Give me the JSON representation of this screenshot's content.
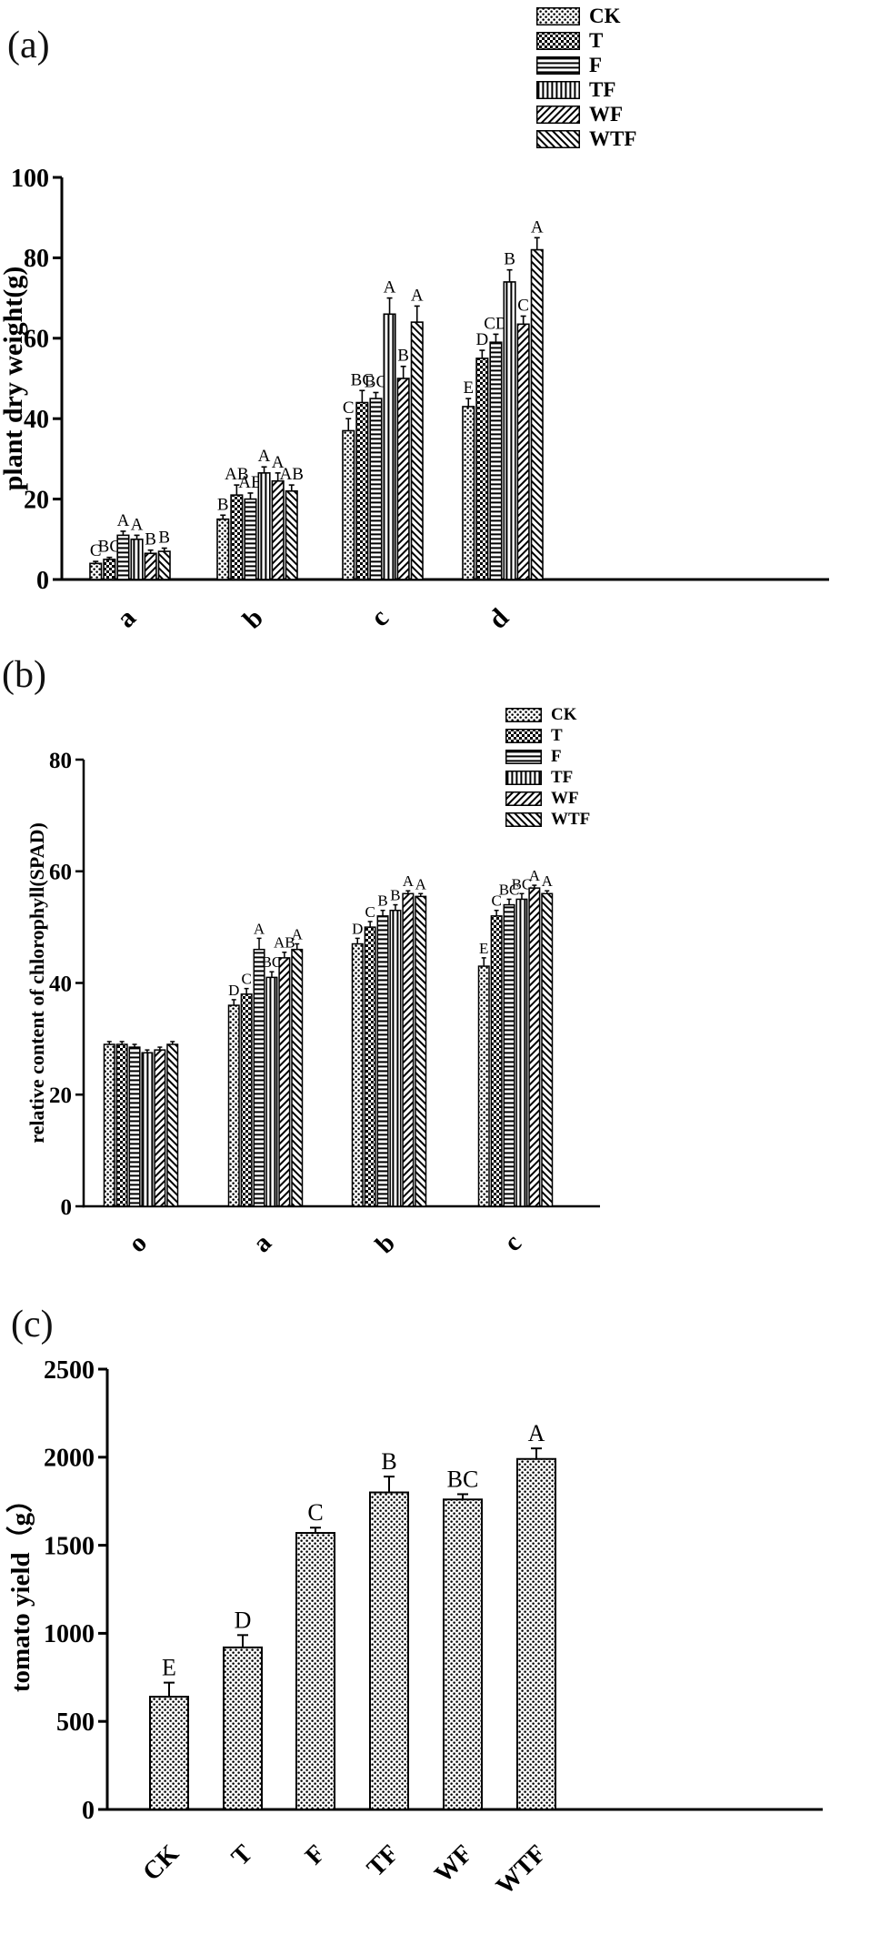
{
  "figure": {
    "panel_labels": [
      "(a)",
      "(b)",
      "(c)"
    ],
    "background_color": "#ffffff",
    "ink_color": "#000000"
  },
  "chart_data": [
    {
      "id": "a",
      "type": "bar",
      "panel": "(a)",
      "title": "",
      "xlabel": "",
      "ylabel": "plant dry weight(g)",
      "ylim": [
        0,
        100
      ],
      "yticks": [
        0,
        20,
        40,
        60,
        80,
        100
      ],
      "grid": false,
      "legend_position": "top-right",
      "categories": [
        "a",
        "b",
        "c",
        "d"
      ],
      "series": [
        {
          "name": "CK",
          "pattern": "dots",
          "values": [
            4,
            15,
            37,
            43
          ],
          "errors": [
            0.5,
            1,
            3,
            2
          ],
          "letters": [
            "C",
            "B",
            "C",
            "E"
          ]
        },
        {
          "name": "T",
          "pattern": "checker",
          "values": [
            5,
            21,
            44,
            55
          ],
          "errors": [
            0.5,
            2.5,
            3,
            2
          ],
          "letters": [
            "BC",
            "AB",
            "BC",
            "D"
          ]
        },
        {
          "name": "F",
          "pattern": "hlines",
          "values": [
            11,
            20,
            45,
            59
          ],
          "errors": [
            1,
            1.5,
            1.5,
            2
          ],
          "letters": [
            "A",
            "AB",
            "BC",
            "CD"
          ]
        },
        {
          "name": "TF",
          "pattern": "vlines",
          "values": [
            10,
            26.5,
            66,
            74
          ],
          "errors": [
            1,
            1.5,
            4,
            3
          ],
          "letters": [
            "A",
            "A",
            "A",
            "B"
          ]
        },
        {
          "name": "WF",
          "pattern": "diag_up",
          "values": [
            6.5,
            24.5,
            50,
            63.5
          ],
          "errors": [
            0.8,
            2,
            3,
            2
          ],
          "letters": [
            "B",
            "A",
            "B",
            "C"
          ]
        },
        {
          "name": "WTF",
          "pattern": "diag_down",
          "values": [
            7,
            22,
            64,
            82
          ],
          "errors": [
            0.8,
            1.5,
            4,
            3
          ],
          "letters": [
            "B",
            "AB",
            "A",
            "A"
          ]
        }
      ]
    },
    {
      "id": "b",
      "type": "bar",
      "panel": "(b)",
      "title": "",
      "xlabel": "",
      "ylabel": "relative content of chlorophyll(SPAD)",
      "ylim": [
        0,
        80
      ],
      "yticks": [
        0,
        20,
        40,
        60,
        80
      ],
      "grid": false,
      "legend_position": "top-right",
      "categories": [
        "o",
        "a",
        "b",
        "c"
      ],
      "series": [
        {
          "name": "CK",
          "pattern": "dots",
          "values": [
            29,
            36,
            47,
            43
          ],
          "errors": [
            0.5,
            1,
            1,
            1.5
          ],
          "letters": [
            "",
            "D",
            "D",
            "E"
          ]
        },
        {
          "name": "T",
          "pattern": "checker",
          "values": [
            29,
            38,
            50,
            52
          ],
          "errors": [
            0.5,
            1,
            1,
            1
          ],
          "letters": [
            "",
            "C",
            "C",
            "C"
          ]
        },
        {
          "name": "F",
          "pattern": "hlines",
          "values": [
            28.5,
            46,
            52,
            54
          ],
          "errors": [
            0.5,
            2,
            1,
            1
          ],
          "letters": [
            "",
            "A",
            "B",
            "BC"
          ]
        },
        {
          "name": "TF",
          "pattern": "vlines",
          "values": [
            27.5,
            41,
            53,
            55
          ],
          "errors": [
            0.5,
            1,
            1,
            1
          ],
          "letters": [
            "",
            "BC",
            "B",
            "BC"
          ]
        },
        {
          "name": "WF",
          "pattern": "diag_up",
          "values": [
            28,
            44.5,
            56,
            57
          ],
          "errors": [
            0.5,
            1,
            0.5,
            0.5
          ],
          "letters": [
            "",
            "AB",
            "A",
            "A"
          ]
        },
        {
          "name": "WTF",
          "pattern": "diag_down",
          "values": [
            29,
            46,
            55.5,
            56
          ],
          "errors": [
            0.5,
            1,
            0.5,
            0.5
          ],
          "letters": [
            "",
            "A",
            "A",
            "A"
          ]
        }
      ]
    },
    {
      "id": "c",
      "type": "bar",
      "panel": "(c)",
      "title": "",
      "xlabel": "",
      "ylabel": "tomato yield（g）",
      "ylim": [
        0,
        2500
      ],
      "yticks": [
        0,
        500,
        1000,
        1500,
        2000,
        2500
      ],
      "grid": false,
      "legend_position": "none",
      "categories": [
        "CK",
        "T",
        "F",
        "TF",
        "WF",
        "WTF"
      ],
      "series": [
        {
          "name": "yield",
          "pattern": "dots",
          "values": [
            640,
            920,
            1570,
            1800,
            1760,
            1990
          ],
          "errors": [
            80,
            70,
            30,
            90,
            30,
            60
          ],
          "letters": [
            "E",
            "D",
            "C",
            "B",
            "BC",
            "A"
          ]
        }
      ]
    }
  ]
}
